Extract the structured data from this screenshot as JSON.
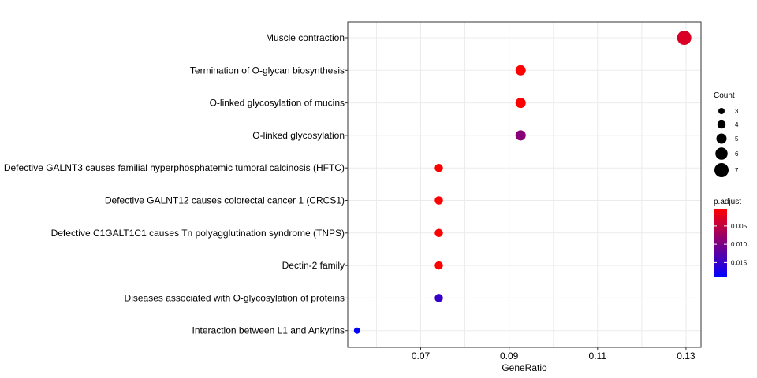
{
  "chart_data": {
    "type": "scatter",
    "xlabel": "GeneRatio",
    "ylabel": "",
    "xlim": [
      0.0535,
      0.1334
    ],
    "x_ticks": [
      0.07,
      0.09,
      0.11,
      0.13
    ],
    "x_tick_labels": [
      "0.07",
      "0.09",
      "0.11",
      "0.13"
    ],
    "grid": true,
    "legend_position": "right",
    "categories": [
      "Muscle contraction",
      "Termination of O-glycan biosynthesis",
      "O-linked glycosylation of mucins",
      "O-linked glycosylation",
      "Defective GALNT3 causes familial hyperphosphatemic tumoral calcinosis (HFTC)",
      "Defective GALNT12 causes colorectal cancer 1 (CRCS1)",
      "Defective C1GALT1C1 causes Tn polyagglutination syndrome (TNPS)",
      "Dectin-2 family",
      "Diseases associated with O-glycosylation of proteins",
      "Interaction between L1 and Ankyrins"
    ],
    "points": [
      {
        "category": "Muscle contraction",
        "x": 0.1296,
        "count": 7,
        "p_adjust": 0.003
      },
      {
        "category": "Termination of O-glycan biosynthesis",
        "x": 0.0926,
        "count": 5,
        "p_adjust": 0.0003
      },
      {
        "category": "O-linked glycosylation of mucins",
        "x": 0.0926,
        "count": 5,
        "p_adjust": 0.0003
      },
      {
        "category": "O-linked glycosylation",
        "x": 0.0926,
        "count": 5,
        "p_adjust": 0.009
      },
      {
        "category": "Defective GALNT3 causes familial hyperphosphatemic tumoral calcinosis (HFTC)",
        "x": 0.0741,
        "count": 4,
        "p_adjust": 0.0003
      },
      {
        "category": "Defective GALNT12 causes colorectal cancer 1 (CRCS1)",
        "x": 0.0741,
        "count": 4,
        "p_adjust": 0.0003
      },
      {
        "category": "Defective C1GALT1C1 causes Tn polyagglutination syndrome (TNPS)",
        "x": 0.0741,
        "count": 4,
        "p_adjust": 0.0003
      },
      {
        "category": "Dectin-2 family",
        "x": 0.0741,
        "count": 4,
        "p_adjust": 0.0003
      },
      {
        "category": "Diseases associated with O-glycosylation of proteins",
        "x": 0.0741,
        "count": 4,
        "p_adjust": 0.015
      },
      {
        "category": "Interaction between L1 and Ankyrins",
        "x": 0.0556,
        "count": 3,
        "p_adjust": 0.019
      }
    ],
    "size_legend": {
      "title": "Count",
      "values": [
        3,
        4,
        5,
        6,
        7
      ],
      "labels": [
        "3",
        "4",
        "5",
        "6",
        "7"
      ]
    },
    "color_legend": {
      "title": "p.adjust",
      "range": [
        0.0003,
        0.019
      ],
      "ticks": [
        0.005,
        0.01,
        0.015
      ],
      "tick_labels": [
        "0.005",
        "0.010",
        "0.015"
      ],
      "low_color": "#ff0000",
      "high_color": "#0000ff"
    }
  }
}
